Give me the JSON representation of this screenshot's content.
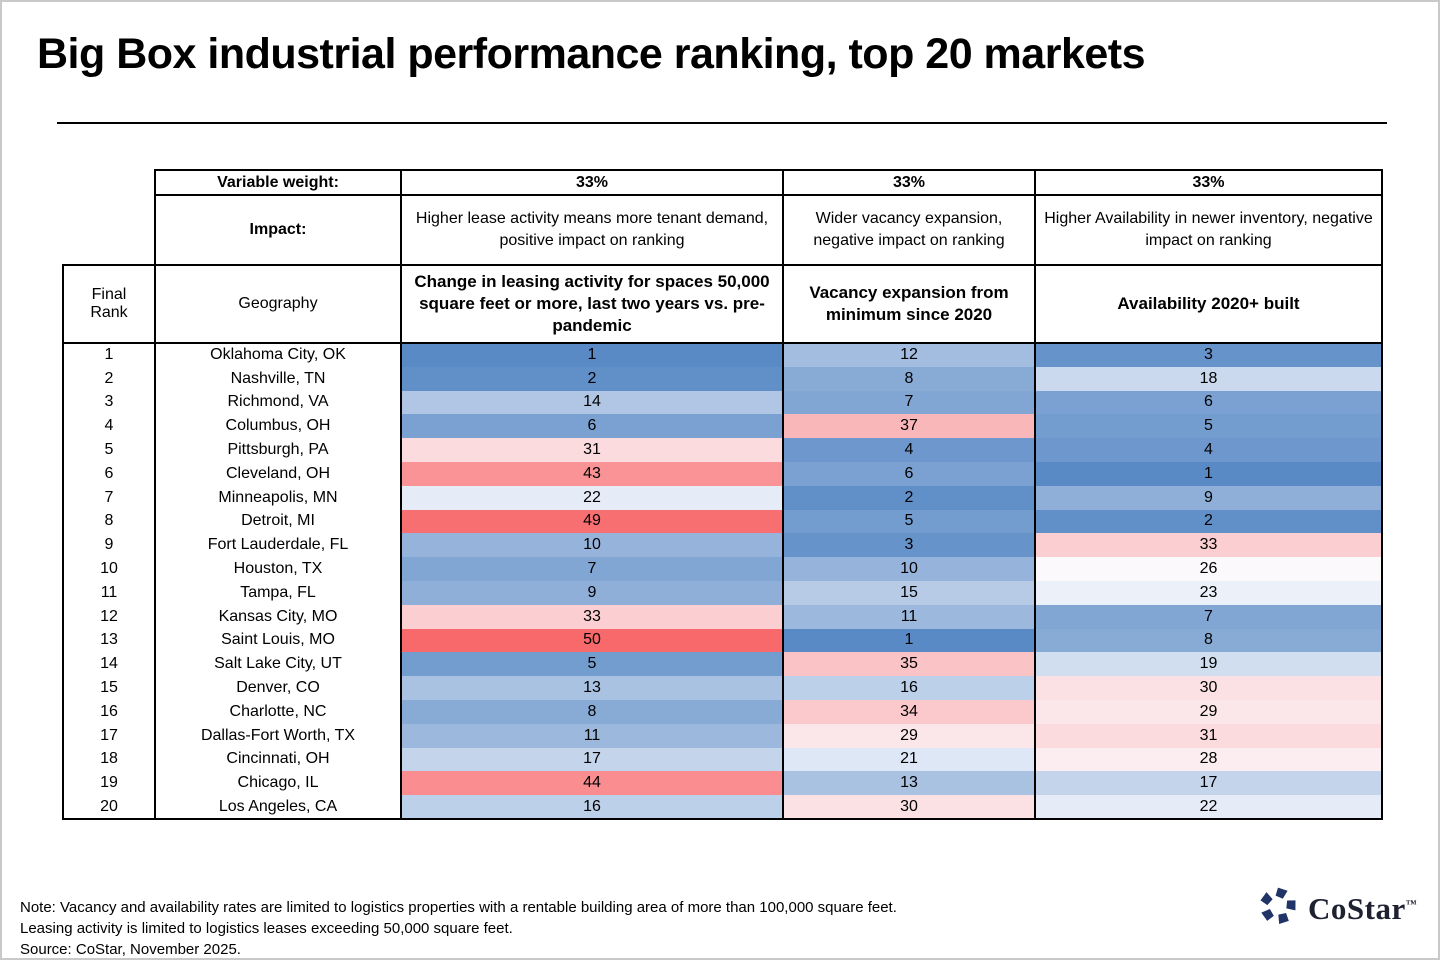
{
  "title": "Big Box industrial performance ranking, top 20 markets",
  "table": {
    "header": {
      "variable_weight_label": "Variable weight:",
      "weights": [
        "33%",
        "33%",
        "33%"
      ],
      "impact_label": "Impact:",
      "impacts": [
        "Higher lease activity means more tenant demand, positive impact on ranking",
        "Wider vacancy expansion, negative impact on ranking",
        "Higher Availability in newer inventory, negative impact on ranking"
      ],
      "rank_label": "Final Rank",
      "geography_label": "Geography",
      "metric_labels": [
        "Change in leasing activity for spaces 50,000 square feet or more, last two years vs. pre-pandemic",
        "Vacancy expansion from minimum since 2020",
        "Availability 2020+ built"
      ]
    }
  },
  "chart_data": {
    "type": "heatmap",
    "title": "Big Box industrial performance ranking, top 20 markets",
    "columns": [
      "Final Rank",
      "Geography",
      "Change in leasing activity for spaces 50,000 square feet or more, last two years vs. pre-pandemic",
      "Vacancy expansion from minimum since 2020",
      "Availability 2020+ built"
    ],
    "rows": [
      {
        "final_rank": 1,
        "geography": "Oklahoma City, OK",
        "leasing_activity_rank": 1,
        "vacancy_expansion_rank": 12,
        "availability_rank": 3
      },
      {
        "final_rank": 2,
        "geography": "Nashville, TN",
        "leasing_activity_rank": 2,
        "vacancy_expansion_rank": 8,
        "availability_rank": 18
      },
      {
        "final_rank": 3,
        "geography": "Richmond, VA",
        "leasing_activity_rank": 14,
        "vacancy_expansion_rank": 7,
        "availability_rank": 6
      },
      {
        "final_rank": 4,
        "geography": "Columbus, OH",
        "leasing_activity_rank": 6,
        "vacancy_expansion_rank": 37,
        "availability_rank": 5
      },
      {
        "final_rank": 5,
        "geography": "Pittsburgh, PA",
        "leasing_activity_rank": 31,
        "vacancy_expansion_rank": 4,
        "availability_rank": 4
      },
      {
        "final_rank": 6,
        "geography": "Cleveland, OH",
        "leasing_activity_rank": 43,
        "vacancy_expansion_rank": 6,
        "availability_rank": 1
      },
      {
        "final_rank": 7,
        "geography": "Minneapolis, MN",
        "leasing_activity_rank": 22,
        "vacancy_expansion_rank": 2,
        "availability_rank": 9
      },
      {
        "final_rank": 8,
        "geography": "Detroit, MI",
        "leasing_activity_rank": 49,
        "vacancy_expansion_rank": 5,
        "availability_rank": 2
      },
      {
        "final_rank": 9,
        "geography": "Fort Lauderdale, FL",
        "leasing_activity_rank": 10,
        "vacancy_expansion_rank": 3,
        "availability_rank": 33
      },
      {
        "final_rank": 10,
        "geography": "Houston, TX",
        "leasing_activity_rank": 7,
        "vacancy_expansion_rank": 10,
        "availability_rank": 26
      },
      {
        "final_rank": 11,
        "geography": "Tampa, FL",
        "leasing_activity_rank": 9,
        "vacancy_expansion_rank": 15,
        "availability_rank": 23
      },
      {
        "final_rank": 12,
        "geography": "Kansas City, MO",
        "leasing_activity_rank": 33,
        "vacancy_expansion_rank": 11,
        "availability_rank": 7
      },
      {
        "final_rank": 13,
        "geography": "Saint Louis, MO",
        "leasing_activity_rank": 50,
        "vacancy_expansion_rank": 1,
        "availability_rank": 8
      },
      {
        "final_rank": 14,
        "geography": "Salt Lake City, UT",
        "leasing_activity_rank": 5,
        "vacancy_expansion_rank": 35,
        "availability_rank": 19
      },
      {
        "final_rank": 15,
        "geography": "Denver, CO",
        "leasing_activity_rank": 13,
        "vacancy_expansion_rank": 16,
        "availability_rank": 30
      },
      {
        "final_rank": 16,
        "geography": "Charlotte, NC",
        "leasing_activity_rank": 8,
        "vacancy_expansion_rank": 34,
        "availability_rank": 29
      },
      {
        "final_rank": 17,
        "geography": "Dallas-Fort Worth, TX",
        "leasing_activity_rank": 11,
        "vacancy_expansion_rank": 29,
        "availability_rank": 31
      },
      {
        "final_rank": 18,
        "geography": "Cincinnati, OH",
        "leasing_activity_rank": 17,
        "vacancy_expansion_rank": 21,
        "availability_rank": 28
      },
      {
        "final_rank": 19,
        "geography": "Chicago, IL",
        "leasing_activity_rank": 44,
        "vacancy_expansion_rank": 13,
        "availability_rank": 17
      },
      {
        "final_rank": 20,
        "geography": "Los Angeles, CA",
        "leasing_activity_rank": 16,
        "vacancy_expansion_rank": 30,
        "availability_rank": 22
      }
    ],
    "color_scale": {
      "min_value": 1,
      "mid_value": 25.5,
      "max_value": 50,
      "min_color": "#5A8AC6",
      "mid_color": "#FCFCFF",
      "max_color": "#F8696B"
    },
    "legend_position": "none",
    "grid": false
  },
  "footer": {
    "notes": [
      "Note: Vacancy and availability rates are limited to logistics properties with a rentable building area of more than 100,000 square feet.",
      "Leasing activity is limited to logistics leases exceeding 50,000 square feet.",
      "Source: CoStar, November 2025."
    ],
    "logo_text": "CoStar",
    "logo_tm": "™",
    "logo_color": "#203468"
  }
}
